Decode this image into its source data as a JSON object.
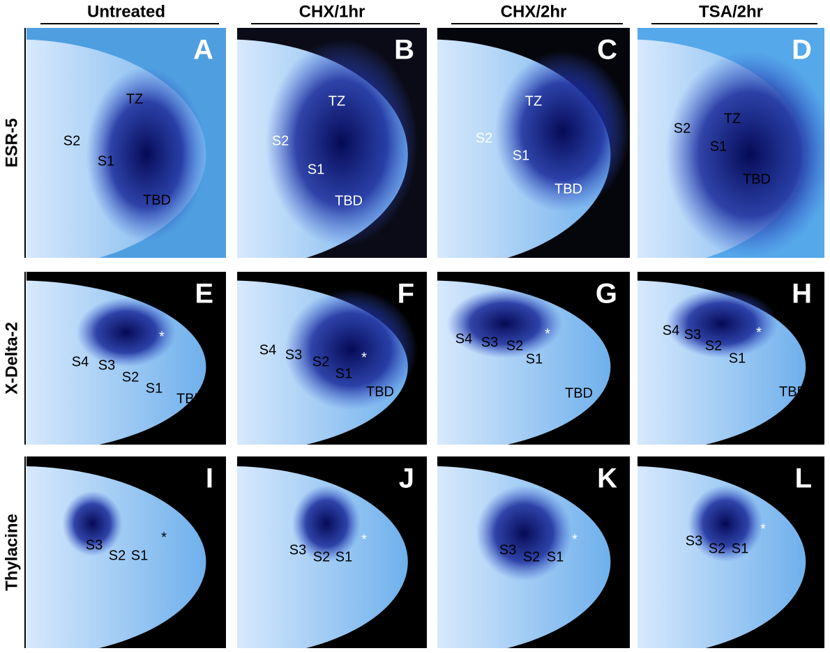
{
  "columns": [
    "Untreated",
    "CHX/1hr",
    "CHX/2hr",
    "TSA/2hr"
  ],
  "rows": [
    {
      "label": "ESR-5",
      "panels": [
        {
          "letter": "A",
          "labels": [
            "TZ",
            "S2",
            "S1",
            "TBD"
          ]
        },
        {
          "letter": "B",
          "labels": [
            "TZ",
            "S2",
            "S1",
            "TBD"
          ]
        },
        {
          "letter": "C",
          "labels": [
            "TZ",
            "S2",
            "S1",
            "TBD"
          ]
        },
        {
          "letter": "D",
          "labels": [
            "TZ",
            "S2",
            "S1",
            "TBD"
          ]
        }
      ]
    },
    {
      "label": "X-Delta-2",
      "panels": [
        {
          "letter": "E",
          "labels": [
            "S4",
            "S3",
            "S2",
            "S1",
            "TBD",
            "*"
          ]
        },
        {
          "letter": "F",
          "labels": [
            "S4",
            "S3",
            "S2",
            "S1",
            "*",
            "TBD"
          ]
        },
        {
          "letter": "G",
          "labels": [
            "S4",
            "S3",
            "S2",
            "S1",
            "*",
            "TBD"
          ]
        },
        {
          "letter": "H",
          "labels": [
            "S4",
            "S3",
            "S2",
            "S1",
            "*",
            "TBD"
          ]
        }
      ]
    },
    {
      "label": "Thylacine",
      "panels": [
        {
          "letter": "I",
          "labels": [
            "S3",
            "S2",
            "S1",
            "*"
          ]
        },
        {
          "letter": "J",
          "labels": [
            "S3",
            "S2",
            "S1",
            "*"
          ]
        },
        {
          "letter": "K",
          "labels": [
            "S3",
            "S2",
            "S1",
            "*"
          ]
        },
        {
          "letter": "L",
          "labels": [
            "S3",
            "S2",
            "S1",
            "*"
          ]
        }
      ]
    }
  ]
}
